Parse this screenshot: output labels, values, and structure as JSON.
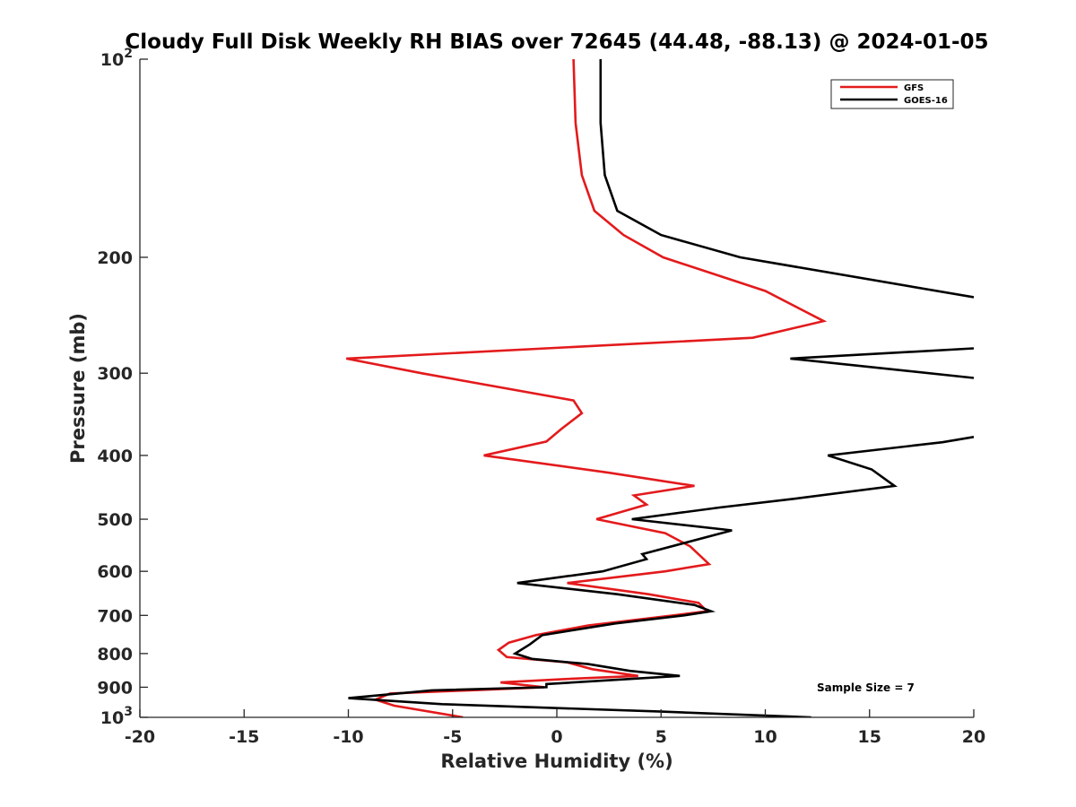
{
  "chart_data": {
    "type": "line",
    "title": "Cloudy Full Disk Weekly RH BIAS over 72645 (44.48, -88.13) @ 2024-01-05",
    "xlabel": "Relative Humidity (%)",
    "ylabel": "Pressure (mb)",
    "xlim": [
      -20,
      20
    ],
    "ylim": [
      100,
      1000
    ],
    "y_scale": "log",
    "y_reversed": true,
    "grid": false,
    "legend_position": "top-right",
    "x_ticks": [
      {
        "value": -20,
        "label": "-20"
      },
      {
        "value": -15,
        "label": "-15"
      },
      {
        "value": -10,
        "label": "-10"
      },
      {
        "value": -5,
        "label": "-5"
      },
      {
        "value": 0,
        "label": "0"
      },
      {
        "value": 5,
        "label": "5"
      },
      {
        "value": 10,
        "label": "10"
      },
      {
        "value": 15,
        "label": "15"
      },
      {
        "value": 20,
        "label": "20"
      }
    ],
    "y_ticks": [
      {
        "value": 100,
        "base": "10",
        "exp": "2"
      },
      {
        "value": 200,
        "label": "200"
      },
      {
        "value": 300,
        "label": "300"
      },
      {
        "value": 400,
        "label": "400"
      },
      {
        "value": 500,
        "label": "500"
      },
      {
        "value": 600,
        "label": "600"
      },
      {
        "value": 700,
        "label": "700"
      },
      {
        "value": 800,
        "label": "800"
      },
      {
        "value": 900,
        "label": "900"
      },
      {
        "value": 1000,
        "base": "10",
        "exp": "3"
      }
    ],
    "series": [
      {
        "name": "GFS",
        "color": "#e31a1c",
        "points": [
          {
            "x": 0.8,
            "y": 100
          },
          {
            "x": 0.9,
            "y": 125
          },
          {
            "x": 1.2,
            "y": 150
          },
          {
            "x": 1.8,
            "y": 170
          },
          {
            "x": 3.2,
            "y": 185
          },
          {
            "x": 5.1,
            "y": 200
          },
          {
            "x": 10.0,
            "y": 225
          },
          {
            "x": 12.8,
            "y": 250
          },
          {
            "x": 9.4,
            "y": 265
          },
          {
            "x": -10.1,
            "y": 285
          },
          {
            "x": -6.5,
            "y": 300
          },
          {
            "x": 0.8,
            "y": 330
          },
          {
            "x": 1.2,
            "y": 345
          },
          {
            "x": 0.2,
            "y": 365
          },
          {
            "x": -0.5,
            "y": 381
          },
          {
            "x": -3.5,
            "y": 400
          },
          {
            "x": 2.5,
            "y": 425
          },
          {
            "x": 6.6,
            "y": 445
          },
          {
            "x": 3.7,
            "y": 460
          },
          {
            "x": 4.3,
            "y": 475
          },
          {
            "x": 1.9,
            "y": 500
          },
          {
            "x": 5.2,
            "y": 525
          },
          {
            "x": 6.4,
            "y": 550
          },
          {
            "x": 7.3,
            "y": 585
          },
          {
            "x": 5.2,
            "y": 600
          },
          {
            "x": 0.5,
            "y": 625
          },
          {
            "x": 4.4,
            "y": 650
          },
          {
            "x": 6.8,
            "y": 670
          },
          {
            "x": 7.2,
            "y": 690
          },
          {
            "x": 5.6,
            "y": 700
          },
          {
            "x": 1.5,
            "y": 725
          },
          {
            "x": -1.0,
            "y": 750
          },
          {
            "x": -2.3,
            "y": 770
          },
          {
            "x": -2.8,
            "y": 790
          },
          {
            "x": -2.4,
            "y": 810
          },
          {
            "x": 0.5,
            "y": 825
          },
          {
            "x": 1.7,
            "y": 845
          },
          {
            "x": 3.9,
            "y": 865
          },
          {
            "x": 0.3,
            "y": 875
          },
          {
            "x": -2.7,
            "y": 885
          },
          {
            "x": -0.6,
            "y": 900
          },
          {
            "x": -4.2,
            "y": 910
          },
          {
            "x": -8.0,
            "y": 920
          },
          {
            "x": -8.7,
            "y": 940
          },
          {
            "x": -7.8,
            "y": 960
          },
          {
            "x": -4.5,
            "y": 1000
          }
        ]
      },
      {
        "name": "GOES-16",
        "color": "#000000",
        "points": [
          {
            "x": 2.1,
            "y": 100
          },
          {
            "x": 2.1,
            "y": 125
          },
          {
            "x": 2.3,
            "y": 150
          },
          {
            "x": 2.9,
            "y": 170
          },
          {
            "x": 5.0,
            "y": 185
          },
          {
            "x": 8.8,
            "y": 200
          },
          {
            "x": 20.0,
            "y": 230
          },
          {
            "x": null,
            "y": 272
          },
          {
            "x": 20.0,
            "y": 275
          },
          {
            "x": 11.2,
            "y": 285
          },
          {
            "x": 20.0,
            "y": 305
          },
          {
            "x": null,
            "y": 372
          },
          {
            "x": 20.0,
            "y": 375
          },
          {
            "x": 18.5,
            "y": 382
          },
          {
            "x": 13.0,
            "y": 400
          },
          {
            "x": 15.1,
            "y": 420
          },
          {
            "x": 16.2,
            "y": 445
          },
          {
            "x": 11.5,
            "y": 465
          },
          {
            "x": 7.8,
            "y": 480
          },
          {
            "x": 3.6,
            "y": 500
          },
          {
            "x": 8.4,
            "y": 520
          },
          {
            "x": 4.1,
            "y": 565
          },
          {
            "x": 4.3,
            "y": 575
          },
          {
            "x": 2.2,
            "y": 600
          },
          {
            "x": -1.9,
            "y": 625
          },
          {
            "x": 2.9,
            "y": 650
          },
          {
            "x": 6.6,
            "y": 675
          },
          {
            "x": 7.4,
            "y": 690
          },
          {
            "x": 6.1,
            "y": 700
          },
          {
            "x": 2.8,
            "y": 720
          },
          {
            "x": -0.7,
            "y": 750
          },
          {
            "x": -1.3,
            "y": 775
          },
          {
            "x": -2.0,
            "y": 800
          },
          {
            "x": -1.2,
            "y": 815
          },
          {
            "x": 1.5,
            "y": 830
          },
          {
            "x": 3.5,
            "y": 850
          },
          {
            "x": 5.9,
            "y": 865
          },
          {
            "x": -0.5,
            "y": 890
          },
          {
            "x": -0.5,
            "y": 900
          },
          {
            "x": -6.0,
            "y": 910
          },
          {
            "x": -10.0,
            "y": 935
          },
          {
            "x": -5.5,
            "y": 955
          },
          {
            "x": 5.0,
            "y": 980
          },
          {
            "x": 12.2,
            "y": 1000
          }
        ]
      }
    ],
    "annotation": "Sample Size = 7"
  }
}
